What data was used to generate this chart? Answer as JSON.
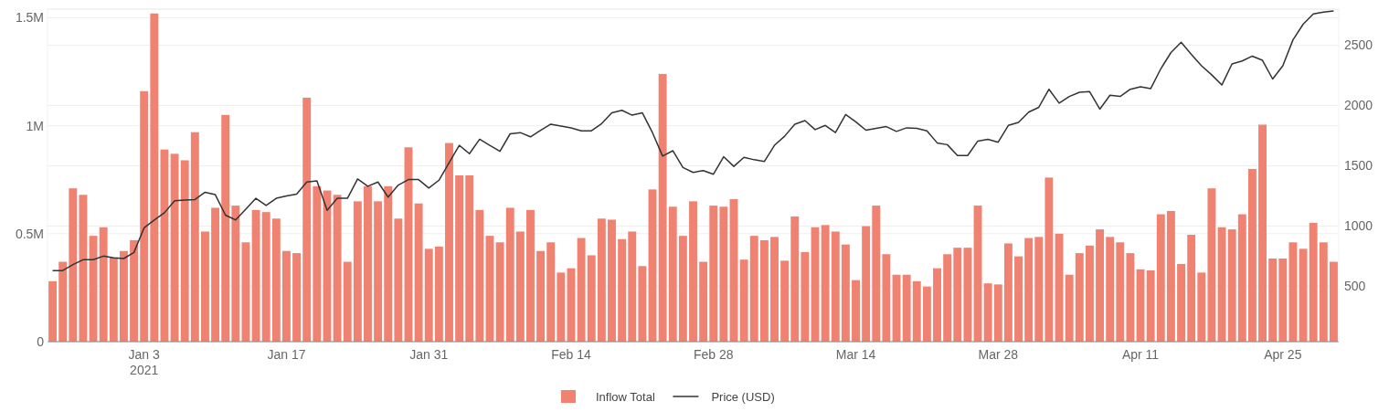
{
  "chart_data": {
    "type": "bar",
    "x": [
      "2020-12-25",
      "2020-12-26",
      "2020-12-27",
      "2020-12-28",
      "2020-12-29",
      "2020-12-30",
      "2020-12-31",
      "2021-01-01",
      "2021-01-02",
      "2021-01-03",
      "2021-01-04",
      "2021-01-05",
      "2021-01-06",
      "2021-01-07",
      "2021-01-08",
      "2021-01-09",
      "2021-01-10",
      "2021-01-11",
      "2021-01-12",
      "2021-01-13",
      "2021-01-14",
      "2021-01-15",
      "2021-01-16",
      "2021-01-17",
      "2021-01-18",
      "2021-01-19",
      "2021-01-20",
      "2021-01-21",
      "2021-01-22",
      "2021-01-23",
      "2021-01-24",
      "2021-01-25",
      "2021-01-26",
      "2021-01-27",
      "2021-01-28",
      "2021-01-29",
      "2021-01-30",
      "2021-01-31",
      "2021-02-01",
      "2021-02-02",
      "2021-02-03",
      "2021-02-04",
      "2021-02-05",
      "2021-02-06",
      "2021-02-07",
      "2021-02-08",
      "2021-02-09",
      "2021-02-10",
      "2021-02-11",
      "2021-02-12",
      "2021-02-13",
      "2021-02-14",
      "2021-02-15",
      "2021-02-16",
      "2021-02-17",
      "2021-02-18",
      "2021-02-19",
      "2021-02-20",
      "2021-02-21",
      "2021-02-22",
      "2021-02-23",
      "2021-02-24",
      "2021-02-25",
      "2021-02-26",
      "2021-02-27",
      "2021-02-28",
      "2021-03-01",
      "2021-03-02",
      "2021-03-03",
      "2021-03-04",
      "2021-03-05",
      "2021-03-06",
      "2021-03-07",
      "2021-03-08",
      "2021-03-09",
      "2021-03-10",
      "2021-03-11",
      "2021-03-12",
      "2021-03-13",
      "2021-03-14",
      "2021-03-15",
      "2021-03-16",
      "2021-03-17",
      "2021-03-18",
      "2021-03-19",
      "2021-03-20",
      "2021-03-21",
      "2021-03-22",
      "2021-03-23",
      "2021-03-24",
      "2021-03-25",
      "2021-03-26",
      "2021-03-27",
      "2021-03-28",
      "2021-03-29",
      "2021-03-30",
      "2021-03-31",
      "2021-04-01",
      "2021-04-02",
      "2021-04-03",
      "2021-04-04",
      "2021-04-05",
      "2021-04-06",
      "2021-04-07",
      "2021-04-08",
      "2021-04-09",
      "2021-04-10",
      "2021-04-11",
      "2021-04-12",
      "2021-04-13",
      "2021-04-14",
      "2021-04-15",
      "2021-04-16",
      "2021-04-17",
      "2021-04-18",
      "2021-04-19",
      "2021-04-20",
      "2021-04-21",
      "2021-04-22",
      "2021-04-23",
      "2021-04-24",
      "2021-04-25",
      "2021-04-26",
      "2021-04-27",
      "2021-04-28",
      "2021-04-29",
      "2021-04-30"
    ],
    "series": [
      {
        "name": "Inflow Total",
        "color": "#f08272",
        "values": [
          280000,
          370000,
          710000,
          680000,
          490000,
          530000,
          390000,
          420000,
          470000,
          1160000,
          1520000,
          890000,
          870000,
          840000,
          970000,
          510000,
          620000,
          1050000,
          630000,
          460000,
          610000,
          600000,
          570000,
          420000,
          410000,
          1130000,
          720000,
          700000,
          680000,
          370000,
          650000,
          720000,
          650000,
          720000,
          570000,
          900000,
          640000,
          430000,
          440000,
          920000,
          770000,
          770000,
          610000,
          490000,
          460000,
          620000,
          510000,
          610000,
          420000,
          460000,
          320000,
          340000,
          480000,
          400000,
          570000,
          565000,
          475000,
          510000,
          350000,
          705000,
          1240000,
          625000,
          490000,
          650000,
          370000,
          630000,
          625000,
          660000,
          380000,
          490000,
          470000,
          485000,
          375000,
          580000,
          415000,
          530000,
          540000,
          510000,
          450000,
          285000,
          535000,
          630000,
          405000,
          310000,
          310000,
          280000,
          255000,
          340000,
          405000,
          435000,
          435000,
          630000,
          270000,
          265000,
          455000,
          395000,
          480000,
          485000,
          760000,
          500000,
          310000,
          410000,
          445000,
          520000,
          485000,
          460000,
          410000,
          335000,
          330000,
          590000,
          605000,
          360000,
          495000,
          320000,
          710000,
          530000,
          520000,
          590000,
          800000,
          1005000,
          385000,
          385000,
          460000,
          430000,
          550000,
          460000,
          370000
        ]
      },
      {
        "name": "Price (USD)",
        "type": "line",
        "axis": "y2",
        "color": "#333333",
        "values": [
          630,
          630,
          680,
          720,
          720,
          750,
          735,
          730,
          780,
          985,
          1050,
          1110,
          1210,
          1215,
          1220,
          1280,
          1260,
          1090,
          1050,
          1140,
          1230,
          1170,
          1230,
          1250,
          1265,
          1365,
          1375,
          1130,
          1230,
          1230,
          1390,
          1330,
          1365,
          1240,
          1340,
          1385,
          1385,
          1315,
          1380,
          1525,
          1670,
          1600,
          1720,
          1670,
          1620,
          1765,
          1775,
          1740,
          1795,
          1845,
          1830,
          1815,
          1790,
          1790,
          1850,
          1940,
          1960,
          1920,
          1940,
          1775,
          1580,
          1625,
          1485,
          1445,
          1460,
          1430,
          1575,
          1495,
          1570,
          1550,
          1535,
          1670,
          1745,
          1845,
          1875,
          1800,
          1835,
          1775,
          1925,
          1865,
          1795,
          1810,
          1825,
          1785,
          1815,
          1810,
          1790,
          1690,
          1675,
          1585,
          1585,
          1705,
          1720,
          1695,
          1835,
          1860,
          1945,
          1985,
          2135,
          2020,
          2075,
          2110,
          2115,
          1970,
          2085,
          2075,
          2135,
          2155,
          2140,
          2305,
          2440,
          2525,
          2425,
          2330,
          2255,
          2170,
          2345,
          2370,
          2410,
          2375,
          2220,
          2330,
          2545,
          2675,
          2760,
          2775,
          2785
        ]
      }
    ],
    "xlim": [
      "2020-12-24T12:00",
      "2021-04-30T12:00"
    ],
    "xticks": [
      {
        "value": "2021-01-03",
        "label": "Jan 3\n2021"
      },
      {
        "value": "2021-01-17",
        "label": "Jan 17"
      },
      {
        "value": "2021-01-31",
        "label": "Jan 31"
      },
      {
        "value": "2021-02-14",
        "label": "Feb 14"
      },
      {
        "value": "2021-02-28",
        "label": "Feb 28"
      },
      {
        "value": "2021-03-14",
        "label": "Mar 14"
      },
      {
        "value": "2021-03-28",
        "label": "Mar 28"
      },
      {
        "value": "2021-04-11",
        "label": "Apr 11"
      },
      {
        "value": "2021-04-25",
        "label": "Apr 25"
      }
    ],
    "ylim": [
      0,
      1540000
    ],
    "yticks": [
      0,
      {
        "value": 500000,
        "label": "0.5M"
      },
      {
        "value": 1000000,
        "label": "1M"
      },
      {
        "value": 1500000,
        "label": "1.5M"
      }
    ],
    "y2lim": [
      40,
      2800
    ],
    "y2ticks": [
      500,
      1000,
      1500,
      2000,
      2500
    ],
    "grid": true,
    "legend": "bottom"
  }
}
